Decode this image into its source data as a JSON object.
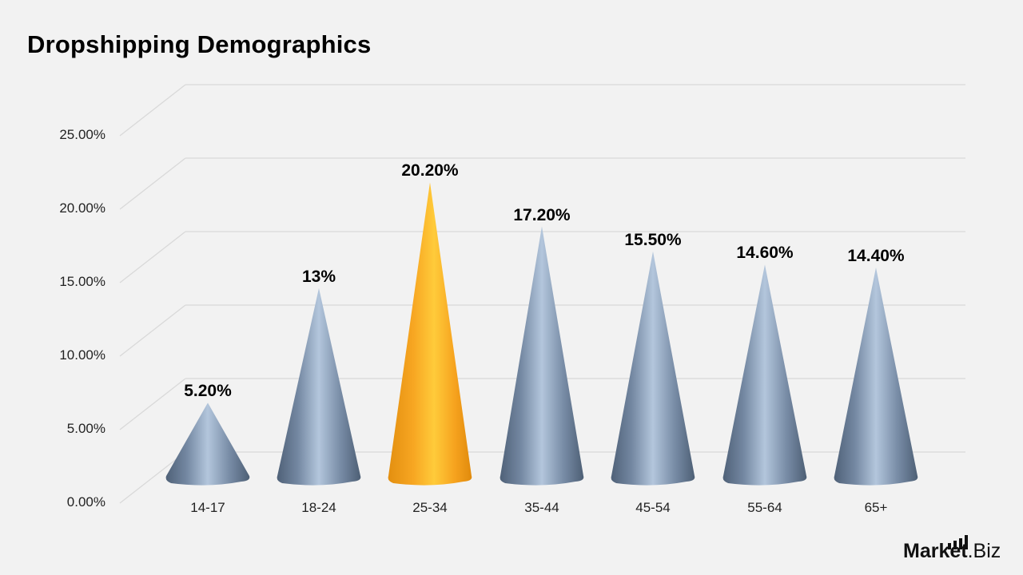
{
  "title": "Dropshipping Demographics",
  "logo": {
    "brand_bold": "Market",
    "brand_rest": ".Biz",
    "icon": "bar-chart-icon"
  },
  "colors": {
    "background": "#f2f2f2",
    "cone_default": "#7f93ab",
    "cone_highlight": "#fbb02a",
    "gridline": "#d9d9d9",
    "text": "#000000"
  },
  "y_axis": {
    "ticks": [
      "0.00%",
      "5.00%",
      "10.00%",
      "15.00%",
      "20.00%",
      "25.00%"
    ]
  },
  "x_axis": {
    "ticks": [
      "14-17",
      "18-24",
      "25-34",
      "35-44",
      "45-54",
      "55-64",
      "65+"
    ]
  },
  "data_labels": [
    "5.20%",
    "13%",
    "20.20%",
    "17.20%",
    "15.50%",
    "14.60%",
    "14.40%"
  ],
  "chart_data": {
    "type": "bar",
    "subtype": "3d-cone",
    "title": "Dropshipping Demographics",
    "categories": [
      "14-17",
      "18-24",
      "25-34",
      "35-44",
      "45-54",
      "55-64",
      "65+"
    ],
    "values": [
      5.2,
      13,
      20.2,
      17.2,
      15.5,
      14.6,
      14.4
    ],
    "value_labels": [
      "5.20%",
      "13%",
      "20.20%",
      "17.20%",
      "15.50%",
      "14.60%",
      "14.40%"
    ],
    "xlabel": "",
    "ylabel": "",
    "ylim": [
      0,
      25
    ],
    "y_ticks": [
      "0.00%",
      "5.00%",
      "10.00%",
      "15.00%",
      "20.00%",
      "25.00%"
    ],
    "grid": true,
    "legend": false,
    "highlight_index": 2
  }
}
